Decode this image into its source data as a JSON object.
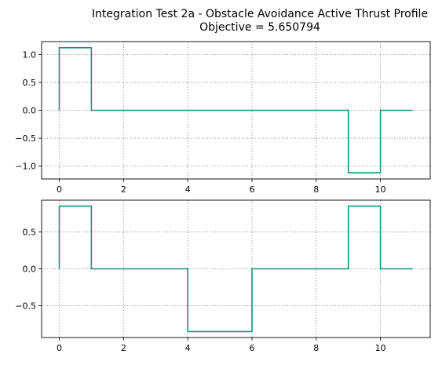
{
  "colors": {
    "line": "#11967a",
    "grid": "#808080",
    "axes": "#000000"
  },
  "chart_data": [
    {
      "type": "line",
      "step": true,
      "title_line1": "Integration Test 2a - Obstacle Avoidance Active Thrust Profile",
      "title_line2": "Objective = 5.650794",
      "xlabel": "",
      "ylabel": "",
      "xlim": [
        -0.55,
        11.55
      ],
      "ylim": [
        -1.23,
        1.23
      ],
      "xticks": [
        0,
        2,
        4,
        6,
        8,
        10
      ],
      "yticks": [
        -1.0,
        -0.5,
        0.0,
        0.5,
        1.0
      ],
      "ytick_labels": [
        "−1.0",
        "−0.5",
        "0.0",
        "0.5",
        "1.0"
      ],
      "grid": true,
      "grid_style": "dotted",
      "legend": "none",
      "series": [
        {
          "x": [
            0,
            0,
            1,
            1,
            9,
            9,
            10,
            10,
            11
          ],
          "y": [
            0,
            1.12,
            1.12,
            0,
            0,
            -1.12,
            -1.12,
            0,
            0
          ]
        }
      ]
    },
    {
      "type": "line",
      "step": true,
      "xlabel": "",
      "ylabel": "",
      "xlim": [
        -0.55,
        11.55
      ],
      "ylim": [
        -0.93,
        0.93
      ],
      "xticks": [
        0,
        2,
        4,
        6,
        8,
        10
      ],
      "yticks": [
        -0.5,
        0.0,
        0.5
      ],
      "ytick_labels": [
        "−0.5",
        "0.0",
        "0.5"
      ],
      "grid": true,
      "grid_style": "dotted",
      "legend": "none",
      "series": [
        {
          "x": [
            0,
            0,
            1,
            1,
            4,
            4,
            6,
            6,
            9,
            9,
            10,
            10,
            11
          ],
          "y": [
            0,
            0.85,
            0.85,
            0,
            0,
            -0.85,
            -0.85,
            0,
            0,
            0.85,
            0.85,
            0,
            0
          ]
        }
      ]
    }
  ]
}
